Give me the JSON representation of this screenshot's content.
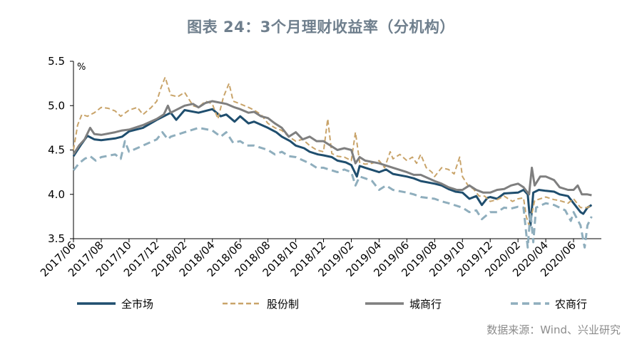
{
  "title": "图表 24：3个月理财收益率（分机构）",
  "source": "数据来源：Wind、兴业研究",
  "chart_data": {
    "type": "line",
    "unit": "%",
    "ylim": [
      3.5,
      5.5
    ],
    "yticks": [
      "3.5",
      "4.0",
      "4.5",
      "5.0",
      "5.5"
    ],
    "xlim": [
      0,
      38
    ],
    "xtick_positions": [
      0,
      2,
      4,
      6,
      8,
      10,
      12,
      14,
      16,
      18,
      20,
      22,
      24,
      26,
      28,
      30,
      32,
      34,
      36
    ],
    "xticks": [
      "2017/06",
      "2017/08",
      "2017/10",
      "2017/12",
      "2018/02",
      "2018/04",
      "2018/06",
      "2018/08",
      "2018/10",
      "2018/12",
      "2019/02",
      "2019/04",
      "2019/06",
      "2019/08",
      "2019/10",
      "2019/12",
      "2020/02",
      "2020/04",
      "2020/06"
    ],
    "series": [
      {
        "name": "全市场",
        "color": "#1f4e6e",
        "dash": "",
        "width": 3,
        "points": [
          [
            0,
            4.43
          ],
          [
            0.5,
            4.55
          ],
          [
            1,
            4.66
          ],
          [
            1.5,
            4.62
          ],
          [
            2,
            4.61
          ],
          [
            3,
            4.63
          ],
          [
            3.5,
            4.65
          ],
          [
            4,
            4.71
          ],
          [
            5,
            4.75
          ],
          [
            6,
            4.84
          ],
          [
            6.5,
            4.88
          ],
          [
            7,
            4.92
          ],
          [
            7.4,
            4.84
          ],
          [
            8,
            4.95
          ],
          [
            9,
            4.92
          ],
          [
            10,
            4.96
          ],
          [
            10.6,
            4.88
          ],
          [
            11,
            4.9
          ],
          [
            11.6,
            4.82
          ],
          [
            12,
            4.88
          ],
          [
            12.6,
            4.8
          ],
          [
            13,
            4.82
          ],
          [
            14,
            4.75
          ],
          [
            14.6,
            4.7
          ],
          [
            15,
            4.65
          ],
          [
            15.6,
            4.6
          ],
          [
            16,
            4.55
          ],
          [
            16.6,
            4.52
          ],
          [
            17,
            4.48
          ],
          [
            17.6,
            4.45
          ],
          [
            18,
            4.44
          ],
          [
            18.6,
            4.42
          ],
          [
            19,
            4.38
          ],
          [
            19.6,
            4.36
          ],
          [
            20,
            4.33
          ],
          [
            20.4,
            4.2
          ],
          [
            20.6,
            4.32
          ],
          [
            21,
            4.3
          ],
          [
            22,
            4.25
          ],
          [
            22.5,
            4.28
          ],
          [
            23,
            4.23
          ],
          [
            24,
            4.2
          ],
          [
            24.5,
            4.18
          ],
          [
            25,
            4.15
          ],
          [
            26,
            4.12
          ],
          [
            26.5,
            4.1
          ],
          [
            27,
            4.06
          ],
          [
            27.5,
            4.03
          ],
          [
            28,
            4.02
          ],
          [
            28.5,
            3.95
          ],
          [
            29,
            3.98
          ],
          [
            29.4,
            3.88
          ],
          [
            29.8,
            3.96
          ],
          [
            30,
            3.97
          ],
          [
            30.5,
            3.95
          ],
          [
            31,
            4.01
          ],
          [
            32,
            4.02
          ],
          [
            32.4,
            4.05
          ],
          [
            32.7,
            4.0
          ],
          [
            32.9,
            3.65
          ],
          [
            33.1,
            4.02
          ],
          [
            33.5,
            4.05
          ],
          [
            34,
            4.04
          ],
          [
            34.6,
            4.03
          ],
          [
            35,
            4.0
          ],
          [
            35.6,
            3.98
          ],
          [
            36,
            3.9
          ],
          [
            36.5,
            3.8
          ],
          [
            36.7,
            3.78
          ],
          [
            37,
            3.85
          ],
          [
            37.3,
            3.88
          ]
        ]
      },
      {
        "name": "股份制",
        "color": "#c9a46a",
        "dash": "7,4",
        "width": 2,
        "points": [
          [
            0,
            4.5
          ],
          [
            0.3,
            4.78
          ],
          [
            0.6,
            4.9
          ],
          [
            1,
            4.88
          ],
          [
            1.5,
            4.92
          ],
          [
            2,
            4.98
          ],
          [
            2.5,
            4.97
          ],
          [
            3,
            4.94
          ],
          [
            3.4,
            4.88
          ],
          [
            4,
            4.95
          ],
          [
            4.6,
            4.98
          ],
          [
            5,
            4.9
          ],
          [
            5.6,
            4.98
          ],
          [
            6,
            5.05
          ],
          [
            6.3,
            5.2
          ],
          [
            6.6,
            5.32
          ],
          [
            7,
            5.12
          ],
          [
            7.5,
            5.1
          ],
          [
            8,
            5.15
          ],
          [
            8.6,
            5.0
          ],
          [
            9,
            4.98
          ],
          [
            9.5,
            5.05
          ],
          [
            10,
            5.02
          ],
          [
            10.4,
            4.85
          ],
          [
            10.8,
            5.1
          ],
          [
            11.2,
            5.25
          ],
          [
            11.5,
            5.05
          ],
          [
            12,
            5.02
          ],
          [
            12.6,
            4.98
          ],
          [
            13,
            4.95
          ],
          [
            13.5,
            4.9
          ],
          [
            14,
            4.8
          ],
          [
            14.5,
            4.75
          ],
          [
            15,
            4.72
          ],
          [
            15.5,
            4.65
          ],
          [
            16,
            4.6
          ],
          [
            16.5,
            4.62
          ],
          [
            17,
            4.55
          ],
          [
            17.5,
            4.5
          ],
          [
            18,
            4.48
          ],
          [
            18.3,
            4.85
          ],
          [
            18.6,
            4.46
          ],
          [
            19,
            4.43
          ],
          [
            19.5,
            4.42
          ],
          [
            20,
            4.38
          ],
          [
            20.3,
            4.7
          ],
          [
            20.6,
            4.36
          ],
          [
            21,
            4.34
          ],
          [
            21.5,
            4.35
          ],
          [
            22,
            4.38
          ],
          [
            22.4,
            4.3
          ],
          [
            22.8,
            4.48
          ],
          [
            23,
            4.4
          ],
          [
            23.5,
            4.45
          ],
          [
            24,
            4.38
          ],
          [
            24.4,
            4.42
          ],
          [
            24.7,
            4.35
          ],
          [
            25,
            4.45
          ],
          [
            25.4,
            4.3
          ],
          [
            25.8,
            4.25
          ],
          [
            26,
            4.2
          ],
          [
            26.5,
            4.3
          ],
          [
            27,
            4.28
          ],
          [
            27.4,
            4.23
          ],
          [
            27.8,
            4.42
          ],
          [
            28,
            4.2
          ],
          [
            28.4,
            4.1
          ],
          [
            28.8,
            4.06
          ],
          [
            29.2,
            3.98
          ],
          [
            29.6,
            3.98
          ],
          [
            30,
            3.92
          ],
          [
            30.5,
            3.94
          ],
          [
            31,
            3.98
          ],
          [
            31.6,
            3.92
          ],
          [
            32,
            3.95
          ],
          [
            32.4,
            3.96
          ],
          [
            32.6,
            3.75
          ],
          [
            32.8,
            3.65
          ],
          [
            33,
            3.78
          ],
          [
            33.2,
            3.93
          ],
          [
            33.6,
            3.95
          ],
          [
            34,
            3.97
          ],
          [
            34.6,
            3.94
          ],
          [
            35,
            3.93
          ],
          [
            35.6,
            3.9
          ],
          [
            36,
            3.95
          ],
          [
            36.5,
            3.85
          ],
          [
            37,
            3.85
          ],
          [
            37.3,
            3.88
          ]
        ]
      },
      {
        "name": "城商行",
        "color": "#7f7f7f",
        "dash": "",
        "width": 3,
        "points": [
          [
            0,
            4.45
          ],
          [
            0.4,
            4.55
          ],
          [
            0.8,
            4.62
          ],
          [
            1.2,
            4.75
          ],
          [
            1.5,
            4.68
          ],
          [
            2,
            4.67
          ],
          [
            3,
            4.7
          ],
          [
            3.5,
            4.72
          ],
          [
            4,
            4.73
          ],
          [
            5,
            4.78
          ],
          [
            6,
            4.85
          ],
          [
            6.5,
            4.9
          ],
          [
            6.8,
            5.0
          ],
          [
            7,
            4.92
          ],
          [
            8,
            5.0
          ],
          [
            8.6,
            5.02
          ],
          [
            9,
            4.98
          ],
          [
            9.5,
            5.03
          ],
          [
            10,
            5.05
          ],
          [
            11,
            5.02
          ],
          [
            11.6,
            4.98
          ],
          [
            12,
            4.96
          ],
          [
            12.6,
            4.92
          ],
          [
            13,
            4.93
          ],
          [
            13.5,
            4.88
          ],
          [
            14,
            4.86
          ],
          [
            14.5,
            4.8
          ],
          [
            15,
            4.75
          ],
          [
            15.5,
            4.65
          ],
          [
            16,
            4.7
          ],
          [
            16.5,
            4.62
          ],
          [
            17,
            4.65
          ],
          [
            17.5,
            4.6
          ],
          [
            18,
            4.6
          ],
          [
            18.5,
            4.55
          ],
          [
            19,
            4.5
          ],
          [
            19.5,
            4.52
          ],
          [
            20,
            4.5
          ],
          [
            20.3,
            4.35
          ],
          [
            20.6,
            4.42
          ],
          [
            21,
            4.38
          ],
          [
            22,
            4.35
          ],
          [
            23,
            4.3
          ],
          [
            24,
            4.25
          ],
          [
            24.5,
            4.22
          ],
          [
            25,
            4.22
          ],
          [
            26,
            4.15
          ],
          [
            26.5,
            4.12
          ],
          [
            27,
            4.08
          ],
          [
            27.6,
            4.05
          ],
          [
            28,
            4.05
          ],
          [
            28.5,
            4.1
          ],
          [
            29,
            4.05
          ],
          [
            29.5,
            4.02
          ],
          [
            30,
            4.02
          ],
          [
            30.5,
            4.05
          ],
          [
            31,
            4.06
          ],
          [
            31.5,
            4.1
          ],
          [
            32,
            4.12
          ],
          [
            32.4,
            4.08
          ],
          [
            32.8,
            4.0
          ],
          [
            33,
            4.3
          ],
          [
            33.2,
            4.1
          ],
          [
            33.6,
            4.2
          ],
          [
            34,
            4.2
          ],
          [
            34.6,
            4.16
          ],
          [
            35,
            4.08
          ],
          [
            35.6,
            4.05
          ],
          [
            36,
            4.05
          ],
          [
            36.3,
            4.1
          ],
          [
            36.6,
            4.0
          ],
          [
            37,
            4.0
          ],
          [
            37.3,
            3.99
          ]
        ]
      },
      {
        "name": "农商行",
        "color": "#8faebd",
        "dash": "10,6",
        "width": 3,
        "points": [
          [
            0,
            4.27
          ],
          [
            0.4,
            4.35
          ],
          [
            0.8,
            4.4
          ],
          [
            1.2,
            4.43
          ],
          [
            1.6,
            4.38
          ],
          [
            2,
            4.42
          ],
          [
            3,
            4.45
          ],
          [
            3.4,
            4.4
          ],
          [
            3.7,
            4.6
          ],
          [
            4,
            4.48
          ],
          [
            5,
            4.55
          ],
          [
            6,
            4.62
          ],
          [
            6.4,
            4.7
          ],
          [
            6.8,
            4.62
          ],
          [
            7,
            4.65
          ],
          [
            8,
            4.7
          ],
          [
            9,
            4.75
          ],
          [
            10,
            4.72
          ],
          [
            10.6,
            4.65
          ],
          [
            11,
            4.7
          ],
          [
            11.5,
            4.58
          ],
          [
            12,
            4.6
          ],
          [
            12.5,
            4.55
          ],
          [
            13,
            4.55
          ],
          [
            14,
            4.5
          ],
          [
            14.5,
            4.45
          ],
          [
            15,
            4.48
          ],
          [
            15.5,
            4.43
          ],
          [
            16,
            4.42
          ],
          [
            17,
            4.35
          ],
          [
            17.5,
            4.3
          ],
          [
            18,
            4.3
          ],
          [
            19,
            4.25
          ],
          [
            19.5,
            4.28
          ],
          [
            20,
            4.25
          ],
          [
            20.3,
            4.1
          ],
          [
            20.6,
            4.2
          ],
          [
            21,
            4.18
          ],
          [
            21.5,
            4.15
          ],
          [
            22,
            4.05
          ],
          [
            22.5,
            4.1
          ],
          [
            23,
            4.05
          ],
          [
            24,
            4.02
          ],
          [
            24.5,
            4.0
          ],
          [
            25,
            3.97
          ],
          [
            26,
            3.95
          ],
          [
            26.5,
            3.92
          ],
          [
            27,
            3.9
          ],
          [
            28,
            3.85
          ],
          [
            28.5,
            3.8
          ],
          [
            29,
            3.82
          ],
          [
            29.4,
            3.72
          ],
          [
            30,
            3.8
          ],
          [
            30.5,
            3.8
          ],
          [
            31,
            3.85
          ],
          [
            31.5,
            3.84
          ],
          [
            32,
            3.86
          ],
          [
            32.4,
            3.85
          ],
          [
            32.7,
            3.4
          ],
          [
            32.9,
            3.8
          ],
          [
            33.1,
            3.46
          ],
          [
            33.3,
            3.85
          ],
          [
            34,
            3.9
          ],
          [
            34.6,
            3.88
          ],
          [
            35,
            3.85
          ],
          [
            35.4,
            3.82
          ],
          [
            35.8,
            3.7
          ],
          [
            36,
            3.8
          ],
          [
            36.5,
            3.65
          ],
          [
            36.8,
            3.4
          ],
          [
            37,
            3.65
          ],
          [
            37.3,
            3.75
          ]
        ]
      }
    ]
  }
}
